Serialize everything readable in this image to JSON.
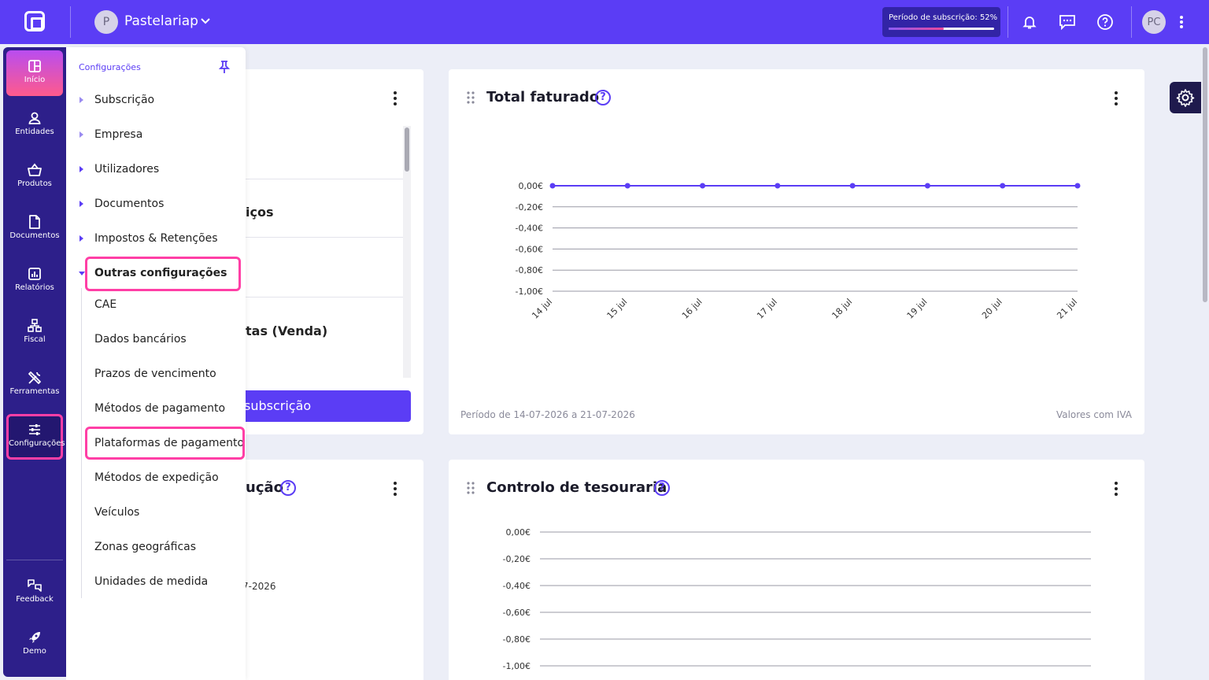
{
  "header": {
    "company_initial": "P",
    "company_name": "Pastelariap",
    "subscription_label": "Período de subscrição: 52%",
    "subscription_progress": 0.52,
    "user_initials": "PC"
  },
  "sidebar": {
    "items": [
      {
        "label": "Início",
        "icon": "home-grid-icon"
      },
      {
        "label": "Entidades",
        "icon": "user-icon"
      },
      {
        "label": "Produtos",
        "icon": "basket-icon"
      },
      {
        "label": "Documentos",
        "icon": "document-icon"
      },
      {
        "label": "Relatórios",
        "icon": "chart-icon"
      },
      {
        "label": "Fiscal",
        "icon": "fiscal-icon"
      },
      {
        "label": "Ferramentas",
        "icon": "tools-icon"
      },
      {
        "label": "Configurações",
        "icon": "sliders-icon"
      }
    ],
    "bottom_items": [
      {
        "label": "Feedback",
        "icon": "feedback-icon"
      },
      {
        "label": "Demo",
        "icon": "rocket-icon"
      }
    ]
  },
  "settings_menu": {
    "title": "Configurações",
    "items": [
      "Subscrição",
      "Empresa",
      "Utilizadores",
      "Documentos",
      "Impostos & Retenções",
      "Outras configurações"
    ],
    "subitems": [
      "CAE",
      "Dados bancários",
      "Prazos de vencimento",
      "Métodos de pagamento",
      "Plataformas de pagamento",
      "Métodos de expedição",
      "Veículos",
      "Zonas geográficas",
      "Unidades de medida"
    ]
  },
  "left_card": {
    "partial_1": "iços",
    "partial_2": "tas (Venda)",
    "button": "subscrição"
  },
  "left_card_2": {
    "title_partial": "ução",
    "date_partial": "7-2026"
  },
  "total_card": {
    "title": "Total faturado",
    "footer_left": "Período de 14-07-2026 a 21-07-2026",
    "footer_right": "Valores com IVA"
  },
  "treasury_card": {
    "title": "Controlo de tesouraria"
  },
  "chart_data": [
    {
      "type": "line",
      "title": "Total faturado",
      "x": [
        "14 jul",
        "15 jul",
        "16 jul",
        "17 jul",
        "18 jul",
        "19 jul",
        "20 jul",
        "21 jul"
      ],
      "values": [
        0,
        0,
        0,
        0,
        0,
        0,
        0,
        0
      ],
      "yticks": [
        "0,00€",
        "-0,20€",
        "-0,40€",
        "-0,60€",
        "-0,80€",
        "-1,00€"
      ],
      "ylim": [
        -1,
        0
      ],
      "grid": true,
      "color": "#5b3df5"
    },
    {
      "type": "line",
      "title": "Controlo de tesouraria",
      "yticks": [
        "0,00€",
        "-0,20€",
        "-0,40€",
        "-0,60€",
        "-0,80€",
        "-1,00€"
      ],
      "ylim": [
        -1,
        0
      ],
      "grid": true
    }
  ]
}
